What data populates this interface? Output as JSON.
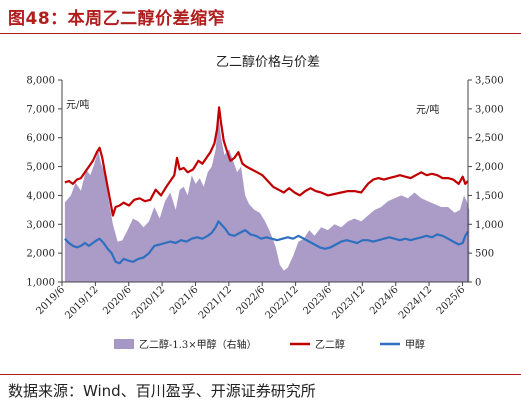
{
  "figure": {
    "title": "图48：本周乙二醇价差缩窄",
    "source": "数据来源：Wind、百川盈孚、开源证券研究所"
  },
  "chart_data": {
    "type": "line+area",
    "title": "乙二醇价格与价差",
    "left_axis": {
      "unit": "元/吨",
      "range": [
        1000,
        8000
      ],
      "ticks": [
        "1,000",
        "2,000",
        "3,000",
        "4,000",
        "5,000",
        "6,000",
        "7,000",
        "8,000"
      ]
    },
    "right_axis": {
      "unit": "元/吨",
      "range": [
        0,
        3500
      ],
      "ticks": [
        "0",
        "500",
        "1,000",
        "1,500",
        "2,000",
        "2,500",
        "3,000",
        "3,500"
      ]
    },
    "x_tick_labels": [
      "2019/6",
      "2019/12",
      "2020/6",
      "2020/12",
      "2021/6",
      "2021/12",
      "2022/6",
      "2022/12",
      "2023/6",
      "2023/12",
      "2024/6",
      "2024/12",
      "2025/6"
    ],
    "x_range": [
      "2019-06",
      "2025-07"
    ],
    "legend_position": "bottom",
    "series": [
      {
        "name": "乙二醇-1.3×甲醇（右轴）",
        "type": "area",
        "axis": "right",
        "color": "#a797c4",
        "points": [
          [
            2019.46,
            1380
          ],
          [
            2019.55,
            1500
          ],
          [
            2019.62,
            1720
          ],
          [
            2019.7,
            1580
          ],
          [
            2019.78,
            1950
          ],
          [
            2019.84,
            1850
          ],
          [
            2019.9,
            2050
          ],
          [
            2019.96,
            2280
          ],
          [
            2020.0,
            2060
          ],
          [
            2020.05,
            1900
          ],
          [
            2020.12,
            1400
          ],
          [
            2020.18,
            1000
          ],
          [
            2020.25,
            700
          ],
          [
            2020.32,
            720
          ],
          [
            2020.4,
            900
          ],
          [
            2020.48,
            1100
          ],
          [
            2020.56,
            1050
          ],
          [
            2020.64,
            950
          ],
          [
            2020.72,
            1050
          ],
          [
            2020.8,
            1300
          ],
          [
            2020.88,
            1100
          ],
          [
            2020.96,
            1400
          ],
          [
            2021.04,
            1550
          ],
          [
            2021.12,
            1250
          ],
          [
            2021.18,
            1600
          ],
          [
            2021.24,
            1650
          ],
          [
            2021.3,
            1500
          ],
          [
            2021.36,
            1850
          ],
          [
            2021.42,
            1700
          ],
          [
            2021.48,
            1800
          ],
          [
            2021.54,
            1650
          ],
          [
            2021.6,
            1900
          ],
          [
            2021.66,
            2000
          ],
          [
            2021.72,
            2300
          ],
          [
            2021.76,
            2900
          ],
          [
            2021.8,
            2500
          ],
          [
            2021.85,
            2200
          ],
          [
            2021.92,
            2300
          ],
          [
            2021.98,
            2100
          ],
          [
            2022.04,
            1900
          ],
          [
            2022.1,
            2000
          ],
          [
            2022.16,
            1500
          ],
          [
            2022.22,
            1350
          ],
          [
            2022.3,
            1250
          ],
          [
            2022.38,
            1200
          ],
          [
            2022.46,
            1050
          ],
          [
            2022.54,
            850
          ],
          [
            2022.62,
            600
          ],
          [
            2022.68,
            300
          ],
          [
            2022.74,
            200
          ],
          [
            2022.8,
            250
          ],
          [
            2022.88,
            450
          ],
          [
            2022.96,
            700
          ],
          [
            2023.04,
            750
          ],
          [
            2023.12,
            900
          ],
          [
            2023.2,
            800
          ],
          [
            2023.3,
            950
          ],
          [
            2023.4,
            900
          ],
          [
            2023.5,
            1000
          ],
          [
            2023.6,
            950
          ],
          [
            2023.7,
            1050
          ],
          [
            2023.8,
            1100
          ],
          [
            2023.9,
            1050
          ],
          [
            2024.0,
            1150
          ],
          [
            2024.1,
            1250
          ],
          [
            2024.2,
            1300
          ],
          [
            2024.3,
            1400
          ],
          [
            2024.4,
            1450
          ],
          [
            2024.5,
            1500
          ],
          [
            2024.6,
            1450
          ],
          [
            2024.7,
            1550
          ],
          [
            2024.8,
            1450
          ],
          [
            2024.9,
            1400
          ],
          [
            2025.0,
            1350
          ],
          [
            2025.1,
            1300
          ],
          [
            2025.2,
            1300
          ],
          [
            2025.3,
            1200
          ],
          [
            2025.38,
            1250
          ],
          [
            2025.44,
            1500
          ],
          [
            2025.48,
            1400
          ],
          [
            2025.52,
            1250
          ]
        ]
      },
      {
        "name": "乙二醇",
        "type": "line",
        "axis": "left",
        "color": "#c00000",
        "points": [
          [
            2019.46,
            4450
          ],
          [
            2019.52,
            4500
          ],
          [
            2019.58,
            4400
          ],
          [
            2019.64,
            4550
          ],
          [
            2019.7,
            4600
          ],
          [
            2019.76,
            4800
          ],
          [
            2019.82,
            5000
          ],
          [
            2019.88,
            5200
          ],
          [
            2019.94,
            5500
          ],
          [
            2019.98,
            5650
          ],
          [
            2020.02,
            5300
          ],
          [
            2020.06,
            4800
          ],
          [
            2020.1,
            4300
          ],
          [
            2020.14,
            3800
          ],
          [
            2020.18,
            3300
          ],
          [
            2020.22,
            3600
          ],
          [
            2020.28,
            3650
          ],
          [
            2020.34,
            3750
          ],
          [
            2020.42,
            3650
          ],
          [
            2020.5,
            3850
          ],
          [
            2020.58,
            3900
          ],
          [
            2020.66,
            3800
          ],
          [
            2020.74,
            3850
          ],
          [
            2020.82,
            4200
          ],
          [
            2020.9,
            4000
          ],
          [
            2020.98,
            4300
          ],
          [
            2021.04,
            4500
          ],
          [
            2021.1,
            4700
          ],
          [
            2021.14,
            5300
          ],
          [
            2021.18,
            4900
          ],
          [
            2021.24,
            4950
          ],
          [
            2021.3,
            4800
          ],
          [
            2021.38,
            4900
          ],
          [
            2021.46,
            5200
          ],
          [
            2021.52,
            5100
          ],
          [
            2021.58,
            5300
          ],
          [
            2021.64,
            5500
          ],
          [
            2021.7,
            5800
          ],
          [
            2021.74,
            6300
          ],
          [
            2021.77,
            7050
          ],
          [
            2021.8,
            6500
          ],
          [
            2021.84,
            5900
          ],
          [
            2021.88,
            5600
          ],
          [
            2021.94,
            5200
          ],
          [
            2022.0,
            5300
          ],
          [
            2022.06,
            5500
          ],
          [
            2022.12,
            5100
          ],
          [
            2022.18,
            5000
          ],
          [
            2022.26,
            4900
          ],
          [
            2022.34,
            4800
          ],
          [
            2022.42,
            4700
          ],
          [
            2022.5,
            4500
          ],
          [
            2022.58,
            4300
          ],
          [
            2022.66,
            4200
          ],
          [
            2022.74,
            4100
          ],
          [
            2022.82,
            4250
          ],
          [
            2022.9,
            4100
          ],
          [
            2022.98,
            4000
          ],
          [
            2023.06,
            4150
          ],
          [
            2023.14,
            4250
          ],
          [
            2023.22,
            4150
          ],
          [
            2023.3,
            4100
          ],
          [
            2023.4,
            4000
          ],
          [
            2023.5,
            4050
          ],
          [
            2023.6,
            4100
          ],
          [
            2023.7,
            4150
          ],
          [
            2023.8,
            4150
          ],
          [
            2023.9,
            4100
          ],
          [
            2024.0,
            4400
          ],
          [
            2024.08,
            4550
          ],
          [
            2024.16,
            4600
          ],
          [
            2024.24,
            4550
          ],
          [
            2024.32,
            4600
          ],
          [
            2024.4,
            4650
          ],
          [
            2024.48,
            4700
          ],
          [
            2024.56,
            4650
          ],
          [
            2024.64,
            4600
          ],
          [
            2024.72,
            4700
          ],
          [
            2024.8,
            4800
          ],
          [
            2024.88,
            4700
          ],
          [
            2024.96,
            4750
          ],
          [
            2025.04,
            4700
          ],
          [
            2025.12,
            4600
          ],
          [
            2025.2,
            4600
          ],
          [
            2025.28,
            4550
          ],
          [
            2025.36,
            4400
          ],
          [
            2025.42,
            4650
          ],
          [
            2025.46,
            4400
          ],
          [
            2025.5,
            4500
          ]
        ]
      },
      {
        "name": "甲醇",
        "type": "line",
        "axis": "left",
        "color": "#2f6fbf",
        "points": [
          [
            2019.46,
            2500
          ],
          [
            2019.52,
            2350
          ],
          [
            2019.58,
            2250
          ],
          [
            2019.64,
            2200
          ],
          [
            2019.7,
            2250
          ],
          [
            2019.76,
            2350
          ],
          [
            2019.82,
            2250
          ],
          [
            2019.88,
            2350
          ],
          [
            2019.94,
            2450
          ],
          [
            2019.98,
            2500
          ],
          [
            2020.04,
            2350
          ],
          [
            2020.1,
            2150
          ],
          [
            2020.16,
            2000
          ],
          [
            2020.22,
            1700
          ],
          [
            2020.28,
            1650
          ],
          [
            2020.34,
            1800
          ],
          [
            2020.4,
            1750
          ],
          [
            2020.48,
            1700
          ],
          [
            2020.56,
            1800
          ],
          [
            2020.64,
            1850
          ],
          [
            2020.72,
            2000
          ],
          [
            2020.8,
            2250
          ],
          [
            2020.88,
            2300
          ],
          [
            2020.96,
            2350
          ],
          [
            2021.04,
            2400
          ],
          [
            2021.12,
            2350
          ],
          [
            2021.2,
            2450
          ],
          [
            2021.28,
            2400
          ],
          [
            2021.36,
            2500
          ],
          [
            2021.44,
            2550
          ],
          [
            2021.52,
            2500
          ],
          [
            2021.6,
            2600
          ],
          [
            2021.66,
            2700
          ],
          [
            2021.72,
            2900
          ],
          [
            2021.76,
            3100
          ],
          [
            2021.8,
            3000
          ],
          [
            2021.86,
            2850
          ],
          [
            2021.92,
            2650
          ],
          [
            2022.0,
            2600
          ],
          [
            2022.08,
            2700
          ],
          [
            2022.16,
            2800
          ],
          [
            2022.24,
            2650
          ],
          [
            2022.32,
            2600
          ],
          [
            2022.4,
            2500
          ],
          [
            2022.48,
            2550
          ],
          [
            2022.56,
            2500
          ],
          [
            2022.64,
            2450
          ],
          [
            2022.72,
            2500
          ],
          [
            2022.8,
            2550
          ],
          [
            2022.88,
            2500
          ],
          [
            2022.96,
            2600
          ],
          [
            2023.04,
            2500
          ],
          [
            2023.12,
            2400
          ],
          [
            2023.2,
            2300
          ],
          [
            2023.28,
            2200
          ],
          [
            2023.36,
            2150
          ],
          [
            2023.44,
            2200
          ],
          [
            2023.52,
            2300
          ],
          [
            2023.6,
            2400
          ],
          [
            2023.68,
            2450
          ],
          [
            2023.76,
            2400
          ],
          [
            2023.84,
            2350
          ],
          [
            2023.92,
            2450
          ],
          [
            2024.0,
            2450
          ],
          [
            2024.08,
            2400
          ],
          [
            2024.16,
            2450
          ],
          [
            2024.24,
            2500
          ],
          [
            2024.32,
            2550
          ],
          [
            2024.4,
            2500
          ],
          [
            2024.48,
            2450
          ],
          [
            2024.56,
            2500
          ],
          [
            2024.64,
            2450
          ],
          [
            2024.72,
            2500
          ],
          [
            2024.8,
            2550
          ],
          [
            2024.88,
            2600
          ],
          [
            2024.96,
            2550
          ],
          [
            2025.04,
            2650
          ],
          [
            2025.12,
            2600
          ],
          [
            2025.2,
            2500
          ],
          [
            2025.28,
            2400
          ],
          [
            2025.36,
            2300
          ],
          [
            2025.42,
            2350
          ],
          [
            2025.46,
            2600
          ],
          [
            2025.5,
            2750
          ]
        ]
      }
    ]
  }
}
